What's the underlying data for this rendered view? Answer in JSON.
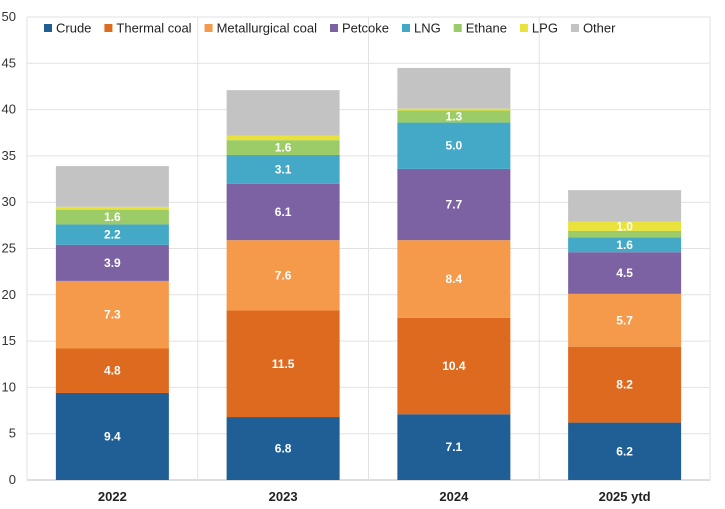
{
  "chart_data": {
    "type": "bar",
    "stacked": true,
    "title": "",
    "xlabel": "",
    "ylabel": "",
    "ylim": [
      0,
      50
    ],
    "yticks": [
      0,
      5,
      10,
      15,
      20,
      25,
      30,
      35,
      40,
      45,
      50
    ],
    "grid": true,
    "legend_position": "top",
    "categories": [
      "2022",
      "2023",
      "2024",
      "2025 ytd"
    ],
    "series": [
      {
        "name": "Crude",
        "color": "#1f5f96",
        "values": [
          9.4,
          6.8,
          7.1,
          6.2
        ],
        "labels": [
          "9.4",
          "6.8",
          "7.1",
          "6.2"
        ]
      },
      {
        "name": "Thermal coal",
        "color": "#de6a20",
        "values": [
          4.8,
          11.5,
          10.4,
          8.2
        ],
        "labels": [
          "4.8",
          "11.5",
          "10.4",
          "8.2"
        ]
      },
      {
        "name": "Metallurgical coal",
        "color": "#f59a4a",
        "values": [
          7.3,
          7.6,
          8.4,
          5.7
        ],
        "labels": [
          "7.3",
          "7.6",
          "8.4",
          "5.7"
        ]
      },
      {
        "name": "Petcoke",
        "color": "#7d62a3",
        "values": [
          3.9,
          6.1,
          7.7,
          4.5
        ],
        "labels": [
          "3.9",
          "6.1",
          "7.7",
          "4.5"
        ]
      },
      {
        "name": "LNG",
        "color": "#43a9c6",
        "values": [
          2.2,
          3.1,
          5.0,
          1.6
        ],
        "labels": [
          "2.2",
          "3.1",
          "5.0",
          "1.6"
        ]
      },
      {
        "name": "Ethane",
        "color": "#9ccc68",
        "values": [
          1.6,
          1.6,
          1.3,
          0.7
        ],
        "labels": [
          "1.6",
          "1.6",
          "1.3",
          ""
        ]
      },
      {
        "name": "LPG",
        "color": "#e8e23a",
        "values": [
          0.3,
          0.5,
          0.2,
          1.0
        ],
        "labels": [
          "",
          "",
          "",
          "1.0"
        ]
      },
      {
        "name": "Other",
        "color": "#c3c3c3",
        "values": [
          4.4,
          4.9,
          4.4,
          3.4
        ],
        "labels": [
          "",
          "",
          "",
          ""
        ]
      }
    ]
  }
}
